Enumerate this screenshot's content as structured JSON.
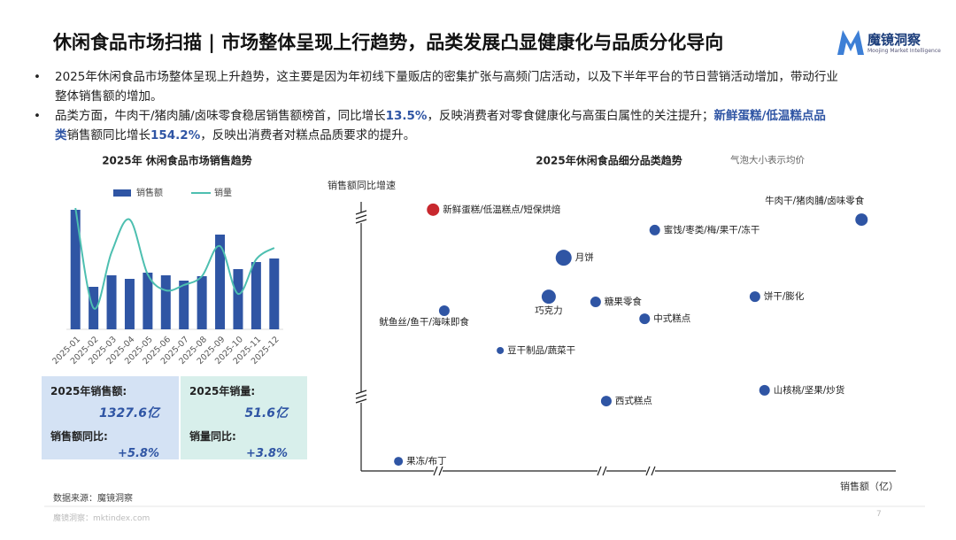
{
  "header": {
    "title": "休闲食品市场扫描 | 市场整体呈现上行趋势，品类发展凸显健康化与品质分化导向",
    "logo": "魔镜洞察",
    "logo_sub": "Moojing Market Intelligence"
  },
  "bullets": [
    [
      "2025年休闲食品市场整体呈现上升趋势，这主要是因为年初线下量贩店的密集扩张与高频门店活动，以及下半年平台的节日营销活动增加，带动行业",
      "整体销售额的增加。"
    ],
    [
      "品类方面，牛肉干/猪肉脯/卤味零食稳居销售额榜首，同比增长",
      "13.5%",
      "，反映消费者对零食健康化与高蛋白属性的关注提升；",
      "新鲜蛋糕/低温糕点品",
      "类",
      "销售额同比增长",
      "154.2%",
      "，反映出消费者对糕点品质要求的提升。"
    ]
  ],
  "chart_data": [
    {
      "type": "bar",
      "title": "2025年 休闲食品市场销售趋势",
      "categories": [
        "2025-01",
        "2025-02",
        "2025-03",
        "2025-04",
        "2025-05",
        "2025-06",
        "2025-07",
        "2025-08",
        "2025-09",
        "2025-10",
        "2025-11",
        "2025-12"
      ],
      "ylim": [
        0,
        150
      ],
      "series": [
        {
          "name": "销售额",
          "type": "bar",
          "color": "#2f55a4",
          "values": [
            135,
            48,
            61,
            57,
            64,
            61,
            55,
            60,
            107,
            68,
            76,
            80
          ]
        },
        {
          "name": "销量",
          "type": "line",
          "color": "#4dbfb0",
          "values": [
            137,
            24,
            87,
            124,
            62,
            44,
            50,
            60,
            94,
            40,
            79,
            92
          ]
        }
      ]
    },
    {
      "type": "scatter",
      "title": "2025年休闲食品细分品类趋势",
      "note": "气泡大小表示均价",
      "y_label": "销售额同比增速",
      "x_label": "销售额（亿）",
      "xlim": [
        0,
        100
      ],
      "ylim": [
        0,
        100
      ],
      "points": [
        {
          "label": "新鲜蛋糕/低温糕点/短保烘焙",
          "x": 13.5,
          "y": 94.6,
          "size": 7,
          "color": "#c8282e"
        },
        {
          "label": "牛肉干/猪肉脯/卤味零食",
          "x": 93.9,
          "y": 91,
          "size": 7,
          "color": "#2f55a4"
        },
        {
          "label": "蜜饯/枣类/梅/果干/冻干",
          "x": 55.1,
          "y": 87.2,
          "size": 6,
          "color": "#2f55a4"
        },
        {
          "label": "月饼",
          "x": 38,
          "y": 77.2,
          "size": 9,
          "color": "#2f55a4"
        },
        {
          "label": "巧克力",
          "x": 35.2,
          "y": 63.1,
          "size": 8,
          "color": "#2f55a4"
        },
        {
          "label": "糖果零食",
          "x": 44,
          "y": 61.2,
          "size": 6,
          "color": "#2f55a4"
        },
        {
          "label": "饼干/膨化",
          "x": 73.9,
          "y": 63.1,
          "size": 6,
          "color": "#2f55a4"
        },
        {
          "label": "鱿鱼丝/鱼干/海味即食",
          "x": 15.6,
          "y": 58,
          "size": 6,
          "color": "#2f55a4"
        },
        {
          "label": "中式糕点",
          "x": 53.2,
          "y": 55.1,
          "size": 6,
          "color": "#2f55a4"
        },
        {
          "label": "豆干制品/蔬菜干",
          "x": 26.1,
          "y": 43.6,
          "size": 4,
          "color": "#2f55a4"
        },
        {
          "label": "山核桃/坚果/炒货",
          "x": 75.7,
          "y": 29.2,
          "size": 6,
          "color": "#2f55a4"
        },
        {
          "label": "西式糕点",
          "x": 46,
          "y": 25.3,
          "size": 6,
          "color": "#2f55a4"
        },
        {
          "label": "果冻/布丁",
          "x": 7,
          "y": 3.5,
          "size": 5,
          "color": "#2f55a4"
        }
      ]
    }
  ],
  "kpis": [
    {
      "label": "2025年销售额:",
      "value": "1327.6亿",
      "sub_label": "销售额同比:",
      "sub_value": "+5.8%"
    },
    {
      "label": "2025年销量:",
      "value": "51.6亿",
      "sub_label": "销量同比:",
      "sub_value": "+3.8%"
    }
  ],
  "footer": {
    "source": "数据来源：魔镜洞察",
    "site": "魔镜洞察：mktindex.com",
    "page": "7"
  }
}
